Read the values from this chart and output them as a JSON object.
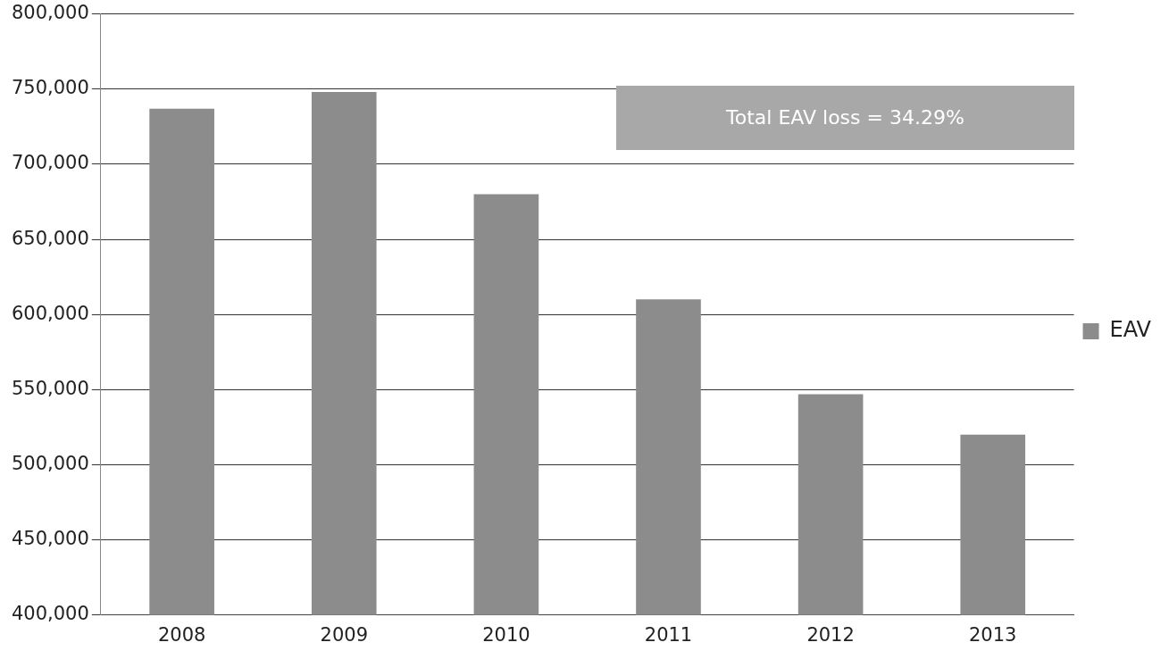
{
  "chart_data": {
    "type": "bar",
    "categories": [
      "2008",
      "2009",
      "2010",
      "2011",
      "2012",
      "2013"
    ],
    "series": [
      {
        "name": "EAV",
        "color": "#8c8c8c",
        "values": [
          737000,
          748000,
          680000,
          610000,
          547000,
          520000
        ]
      }
    ],
    "ylim": [
      400000,
      800000
    ],
    "yticks": [
      {
        "value": 400000,
        "label": "400,000"
      },
      {
        "value": 450000,
        "label": "450,000"
      },
      {
        "value": 500000,
        "label": "500,000"
      },
      {
        "value": 550000,
        "label": "550,000"
      },
      {
        "value": 600000,
        "label": "600,000"
      },
      {
        "value": 650000,
        "label": "650,000"
      },
      {
        "value": 700000,
        "label": "700,000"
      },
      {
        "value": 750000,
        "label": "750,000"
      },
      {
        "value": 800000,
        "label": "800,000"
      }
    ],
    "grid": "y",
    "legend": "right",
    "annotations": [
      "Total EAV loss = 34.29%"
    ]
  }
}
